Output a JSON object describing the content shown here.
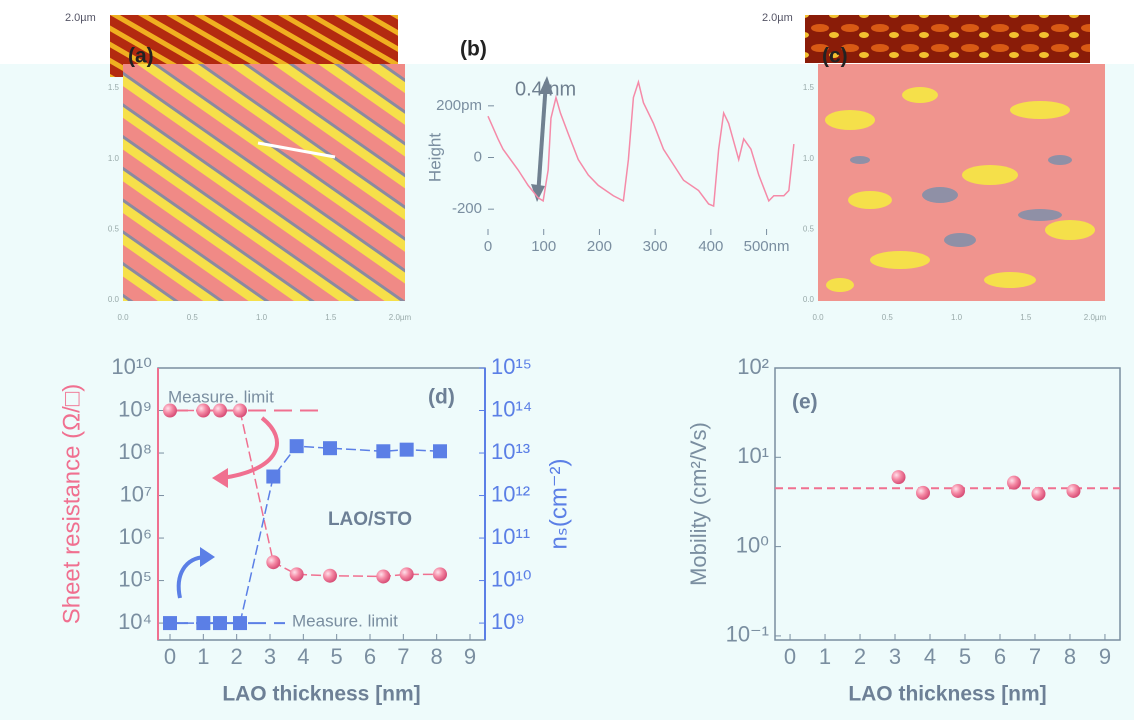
{
  "images": [
    {
      "label": "(a)",
      "scale": "2.0µm",
      "xticks": [
        "0.0",
        "0.5",
        "1.0",
        "1.5",
        "2.0µm"
      ],
      "yticks": [
        "0.0",
        "0.5",
        "1.0",
        "1.5"
      ]
    },
    {
      "label": "(c)",
      "scale": "2.0µm",
      "xticks": [
        "0.0",
        "0.5",
        "1.0",
        "1.5",
        "2.0µm"
      ],
      "yticks": [
        "0.0",
        "0.5",
        "1.0",
        "1.5"
      ]
    }
  ],
  "chart_data": [
    {
      "type": "line",
      "label": "(b)",
      "ylabel": "Height",
      "annotations": [
        "0.4 nm"
      ],
      "x": [
        0,
        18,
        27,
        54,
        72,
        90,
        99,
        108,
        113,
        122,
        130,
        144,
        162,
        180,
        198,
        225,
        243,
        252,
        261,
        270,
        279,
        297,
        315,
        333,
        351,
        378,
        396,
        405,
        414,
        423,
        432,
        450,
        459,
        472,
        486,
        504,
        513,
        522,
        531,
        540,
        549
      ],
      "values": [
        160,
        72,
        32,
        -48,
        -108,
        -156,
        -168,
        -48,
        152,
        232,
        172,
        92,
        -8,
        -68,
        -108,
        -148,
        -168,
        -8,
        232,
        292,
        212,
        132,
        32,
        -28,
        -88,
        -128,
        -180,
        -188,
        32,
        172,
        132,
        -8,
        72,
        32,
        -68,
        -168,
        -148,
        -148,
        -148,
        -128,
        52
      ],
      "color": "#f58aa8",
      "xlim": [
        0,
        560
      ],
      "xticks": [
        0,
        100,
        200,
        300,
        400,
        {
          "value": 500,
          "label": "500nm"
        }
      ],
      "ylim": [
        -300,
        300
      ],
      "yticks": [
        {
          "value": 200,
          "label": "200pm"
        },
        0,
        -200
      ]
    },
    {
      "type": "dual",
      "label": "(d)",
      "xlabel": "LAO thickness [nm]",
      "ylabel": "Sheet resistance (Ω/□)",
      "y2label": "nₛ(cm⁻²)",
      "annotations": [
        "Measure. limit",
        "Measure. limit",
        "LAO/STO"
      ],
      "log_y": true,
      "series": [
        {
          "color": "#f07090",
          "marker": "circle",
          "x": [
            0,
            1,
            1.5,
            2.1,
            3.1,
            3.8,
            4.8,
            6.4,
            7.1,
            8.1
          ],
          "values": [
            1000000000,
            1000000000,
            1000000000,
            1000000000,
            270000,
            140000,
            130000,
            125000,
            140000,
            140000
          ]
        },
        {
          "color": "#5b7fe6",
          "marker": "square",
          "axis": "y2",
          "x": [
            0,
            1,
            1.5,
            2.1,
            3.1,
            3.8,
            4.8,
            6.4,
            7.1,
            8.1
          ],
          "values": [
            1000000000,
            1000000000,
            1000000000,
            1000000000,
            2800000000000,
            14500000000000,
            13000000000000,
            11000000000000,
            12000000000000,
            11000000000000
          ]
        }
      ],
      "xlim": [
        -0.36,
        9.45
      ],
      "xticks": [
        0,
        1,
        2,
        3,
        4,
        5,
        6,
        7,
        8,
        9
      ],
      "ylim": [
        4000,
        10000000000
      ],
      "yticks": [
        {
          "value": 10000,
          "label": "10⁴"
        },
        {
          "value": 100000,
          "label": "10⁵"
        },
        {
          "value": 1000000,
          "label": "10⁶"
        },
        {
          "value": 10000000,
          "label": "10⁷"
        },
        {
          "value": 100000000,
          "label": "10⁸"
        },
        {
          "value": 1000000000,
          "label": "10⁹"
        },
        {
          "value": 10000000000,
          "label": "10¹⁰"
        }
      ],
      "y2lim": [
        400000000,
        1000000000000000
      ],
      "y2ticks": [
        {
          "value": 1000000000,
          "label": "10⁹"
        },
        {
          "value": 10000000000,
          "label": "10¹⁰"
        },
        {
          "value": 100000000000,
          "label": "10¹¹"
        },
        {
          "value": 1000000000000,
          "label": "10¹²"
        },
        {
          "value": 10000000000000,
          "label": "10¹³"
        },
        {
          "value": 100000000000000,
          "label": "10¹⁴"
        },
        {
          "value": 1000000000000000,
          "label": "10¹⁵"
        }
      ]
    },
    {
      "type": "scatter",
      "label": "(e)",
      "xlabel": "LAO thickness [nm]",
      "ylabel": "Mobility (cm²/Vs)",
      "log_y": true,
      "color": "#f07090",
      "reference_line": 4.5,
      "x": [
        3.1,
        3.8,
        4.8,
        6.4,
        7.1,
        8.1
      ],
      "values": [
        6,
        4,
        4.2,
        5.2,
        3.9,
        4.2
      ],
      "xlim": [
        -0.43,
        9.43
      ],
      "xticks": [
        0,
        1,
        2,
        3,
        4,
        5,
        6,
        7,
        8,
        9
      ],
      "ylim": [
        0.09,
        100
      ],
      "yticks": [
        {
          "value": 0.1,
          "label": "10⁻¹"
        },
        {
          "value": 1,
          "label": "10⁰"
        },
        {
          "value": 10,
          "label": "10¹"
        },
        {
          "value": 100,
          "label": "10²"
        }
      ]
    }
  ]
}
